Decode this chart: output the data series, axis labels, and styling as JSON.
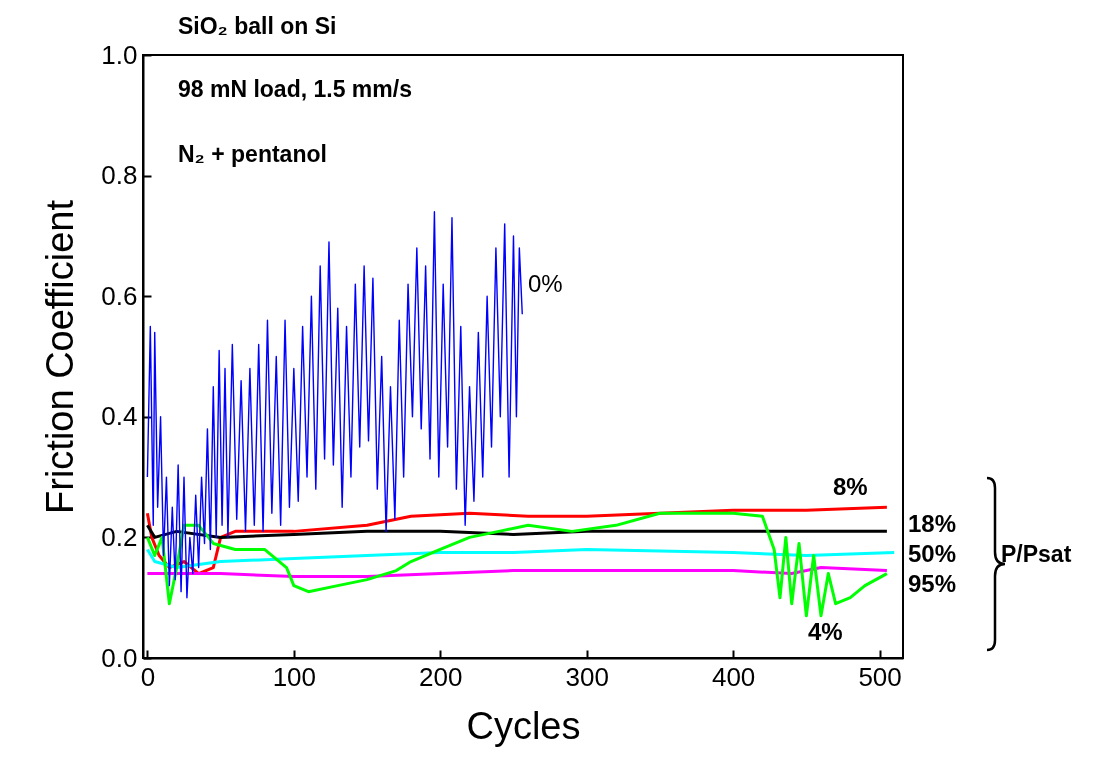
{
  "chart_data": {
    "type": "line",
    "xlabel": "Cycles",
    "ylabel": "Friction Coefficient",
    "xlim": [
      -3,
      516
    ],
    "ylim": [
      0,
      1
    ],
    "xticks": [
      0,
      100,
      200,
      300,
      400,
      500
    ],
    "yticks": [
      {
        "value": 0,
        "label": "0.0"
      },
      {
        "value": 0.2,
        "label": "0.2"
      },
      {
        "value": 0.4,
        "label": "0.4"
      },
      {
        "value": 0.6,
        "label": "0.6"
      },
      {
        "value": 0.8,
        "label": "0.8"
      },
      {
        "value": 1,
        "label": "1.0"
      }
    ],
    "marker": "none",
    "line_style": "solid",
    "annotations": [
      "SiO₂ ball on Si",
      "98 mN load, 1.5 mm/s",
      "N₂ + pentanol",
      "P/Psat"
    ],
    "series": [
      {
        "name": "0%",
        "color": "#0000ff",
        "x": [
          0,
          2,
          4,
          5,
          7,
          9,
          11,
          13,
          15,
          17,
          19,
          21,
          23,
          25,
          27,
          29,
          31,
          33,
          35,
          37,
          39,
          41,
          43,
          45,
          47,
          49,
          51,
          53,
          55,
          58,
          61,
          64,
          67,
          70,
          73,
          76,
          79,
          82,
          85,
          88,
          91,
          94,
          97,
          100,
          103,
          106,
          109,
          112,
          115,
          118,
          121,
          124,
          127,
          130,
          133,
          136,
          139,
          142,
          145,
          148,
          151,
          154,
          157,
          160,
          163,
          166,
          169,
          172,
          175,
          178,
          181,
          184,
          187,
          190,
          193,
          196,
          199,
          202,
          205,
          208,
          211,
          214,
          217,
          220,
          223,
          226,
          229,
          232,
          235,
          238,
          241,
          244,
          247,
          250,
          252,
          254,
          256
        ],
        "values": [
          0.3,
          0.55,
          0.22,
          0.54,
          0.25,
          0.4,
          0.17,
          0.3,
          0.12,
          0.25,
          0.13,
          0.32,
          0.11,
          0.3,
          0.1,
          0.2,
          0.14,
          0.27,
          0.15,
          0.3,
          0.19,
          0.38,
          0.18,
          0.45,
          0.2,
          0.51,
          0.22,
          0.48,
          0.2,
          0.52,
          0.23,
          0.46,
          0.21,
          0.48,
          0.22,
          0.52,
          0.21,
          0.56,
          0.24,
          0.5,
          0.22,
          0.56,
          0.25,
          0.48,
          0.26,
          0.55,
          0.3,
          0.6,
          0.28,
          0.65,
          0.33,
          0.69,
          0.32,
          0.58,
          0.25,
          0.55,
          0.3,
          0.62,
          0.35,
          0.65,
          0.36,
          0.63,
          0.28,
          0.5,
          0.21,
          0.45,
          0.23,
          0.56,
          0.3,
          0.62,
          0.4,
          0.68,
          0.38,
          0.65,
          0.33,
          0.74,
          0.3,
          0.62,
          0.35,
          0.73,
          0.28,
          0.55,
          0.22,
          0.45,
          0.26,
          0.54,
          0.3,
          0.6,
          0.35,
          0.68,
          0.4,
          0.72,
          0.3,
          0.7,
          0.4,
          0.68,
          0.57
        ]
      },
      {
        "name": "8%",
        "color": "#ff0000",
        "x": [
          0,
          3,
          8,
          15,
          25,
          35,
          45,
          50,
          60,
          100,
          150,
          180,
          220,
          260,
          300,
          350,
          400,
          450,
          505
        ],
        "values": [
          0.24,
          0.2,
          0.17,
          0.15,
          0.16,
          0.14,
          0.15,
          0.2,
          0.21,
          0.21,
          0.22,
          0.235,
          0.24,
          0.235,
          0.235,
          0.24,
          0.245,
          0.245,
          0.25
        ]
      },
      {
        "name": "18%",
        "color": "#000000",
        "x": [
          0,
          5,
          20,
          50,
          100,
          150,
          200,
          250,
          300,
          350,
          400,
          450,
          505
        ],
        "values": [
          0.22,
          0.2,
          0.21,
          0.2,
          0.205,
          0.21,
          0.21,
          0.205,
          0.21,
          0.21,
          0.21,
          0.21,
          0.21
        ]
      },
      {
        "name": "50%",
        "color": "#00ffff",
        "x": [
          0,
          5,
          20,
          50,
          100,
          150,
          200,
          250,
          300,
          400,
          450,
          510
        ],
        "values": [
          0.18,
          0.16,
          0.15,
          0.16,
          0.165,
          0.17,
          0.175,
          0.175,
          0.18,
          0.175,
          0.17,
          0.175
        ]
      },
      {
        "name": "95%",
        "color": "#ff00ff",
        "x": [
          0,
          20,
          50,
          100,
          150,
          200,
          250,
          300,
          400,
          440,
          460,
          505
        ],
        "values": [
          0.14,
          0.14,
          0.14,
          0.135,
          0.135,
          0.14,
          0.145,
          0.145,
          0.145,
          0.14,
          0.15,
          0.145
        ]
      },
      {
        "name": "4%",
        "color": "#00ff00",
        "x": [
          0,
          5,
          10,
          15,
          20,
          25,
          35,
          45,
          60,
          80,
          95,
          100,
          110,
          130,
          150,
          170,
          180,
          200,
          220,
          240,
          260,
          290,
          320,
          350,
          380,
          400,
          420,
          428,
          432,
          436,
          440,
          445,
          450,
          455,
          460,
          465,
          470,
          480,
          490,
          505
        ],
        "values": [
          0.2,
          0.17,
          0.2,
          0.09,
          0.15,
          0.22,
          0.22,
          0.19,
          0.18,
          0.18,
          0.15,
          0.12,
          0.11,
          0.12,
          0.13,
          0.145,
          0.16,
          0.18,
          0.2,
          0.21,
          0.22,
          0.21,
          0.22,
          0.24,
          0.24,
          0.24,
          0.235,
          0.18,
          0.1,
          0.2,
          0.09,
          0.19,
          0.07,
          0.17,
          0.07,
          0.14,
          0.09,
          0.1,
          0.12,
          0.14
        ]
      }
    ]
  }
}
